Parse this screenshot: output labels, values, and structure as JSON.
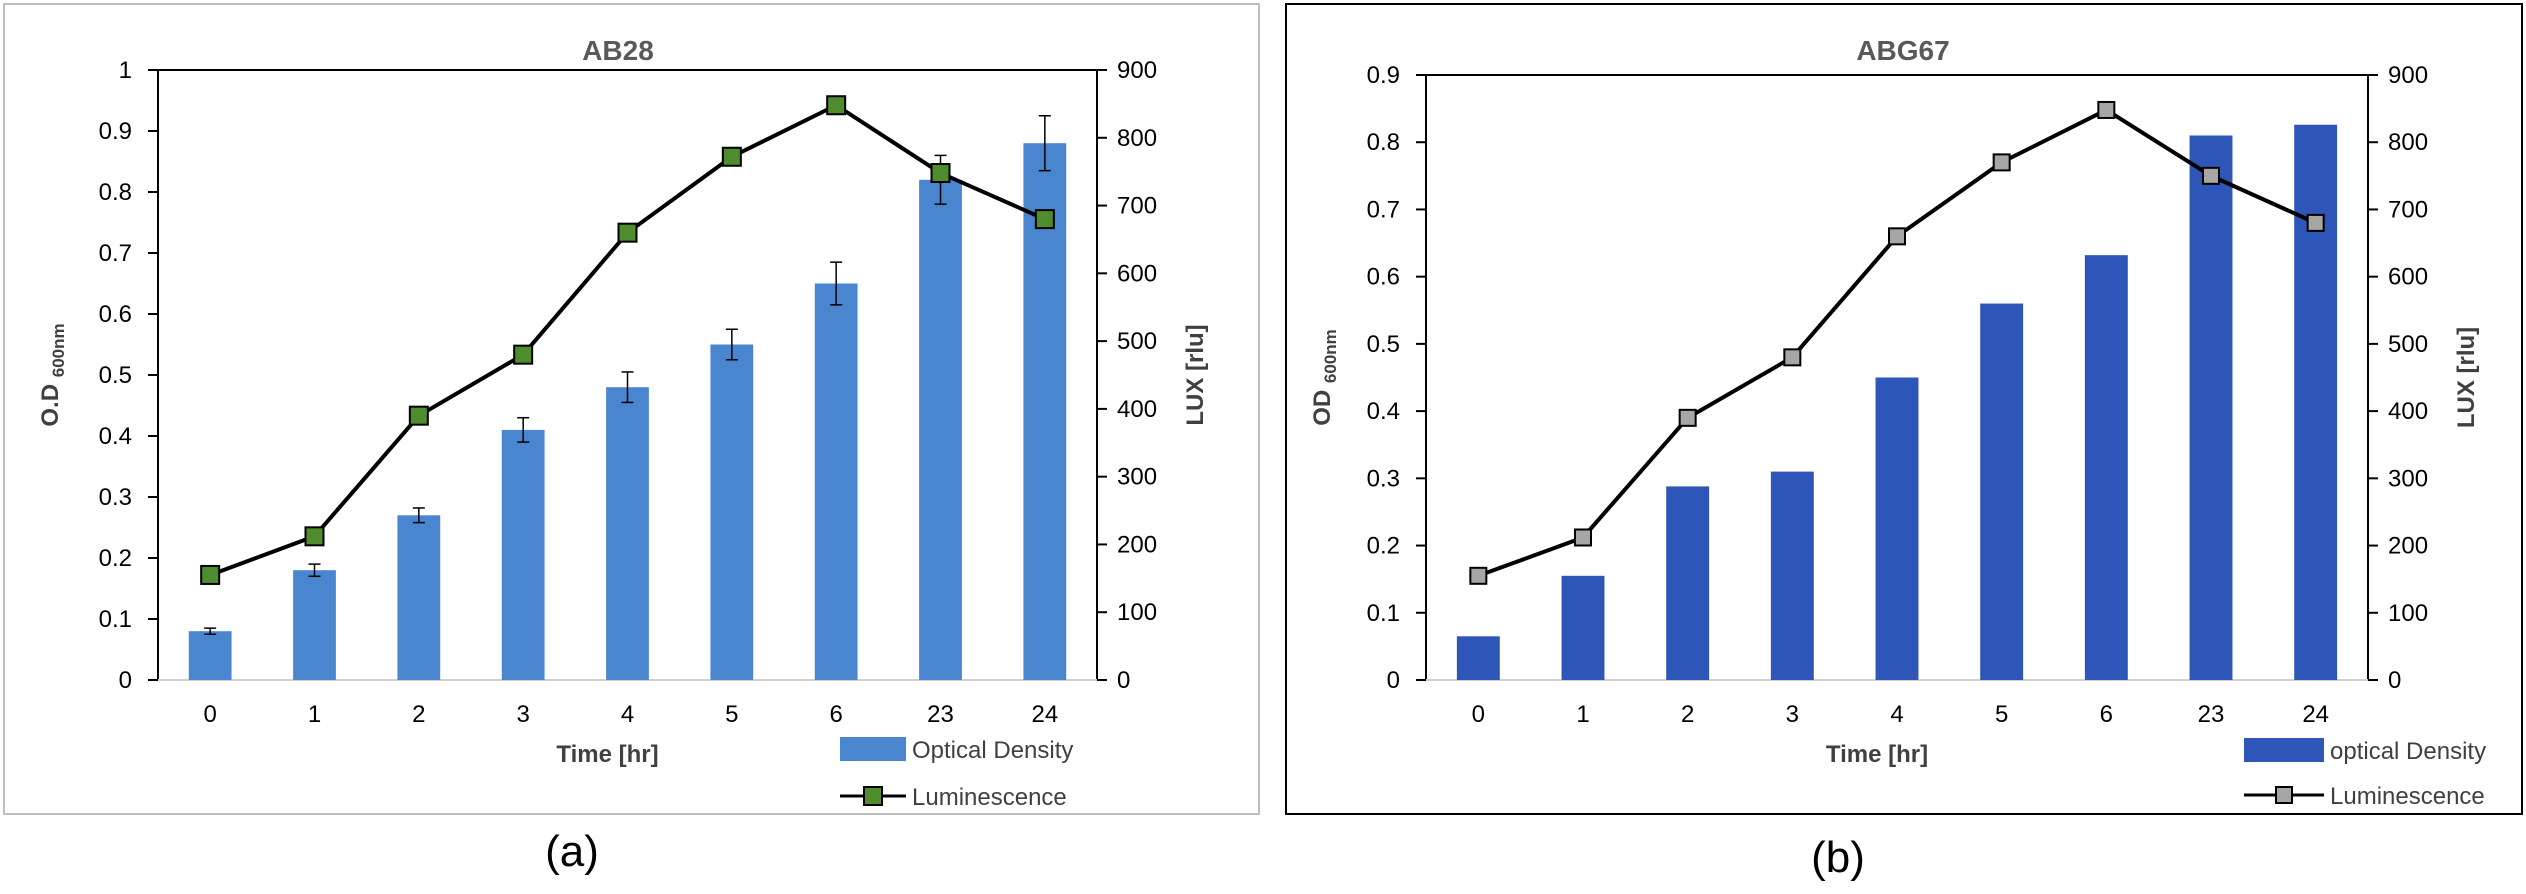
{
  "chart_data": [
    {
      "type": "bar",
      "panel_label": "(a)",
      "title": "AB28",
      "xlabel": "Time [hr]",
      "ylabel_main": "O.D",
      "ylabel_sub": "600nm",
      "y2label": "LUX [rlu]",
      "categories": [
        "0",
        "1",
        "2",
        "3",
        "4",
        "5",
        "6",
        "23",
        "24"
      ],
      "ylim": [
        0,
        1
      ],
      "yticks": [
        "0",
        "0.1",
        "0.2",
        "0.3",
        "0.4",
        "0.5",
        "0.6",
        "0.7",
        "0.8",
        "0.9",
        "1"
      ],
      "y2lim": [
        0,
        900
      ],
      "y2ticks": [
        "0",
        "100",
        "200",
        "300",
        "400",
        "500",
        "600",
        "700",
        "800",
        "900"
      ],
      "grid": false,
      "legend_position": "bottom-right",
      "series": [
        {
          "name": "Optical Density",
          "kind": "bar",
          "axis": "left",
          "color": "#4a86cf",
          "values": [
            0.08,
            0.18,
            0.27,
            0.41,
            0.48,
            0.55,
            0.65,
            0.82,
            0.88
          ],
          "errors": [
            0.005,
            0.01,
            0.012,
            0.02,
            0.025,
            0.025,
            0.035,
            0.04,
            0.045
          ]
        },
        {
          "name": "Luminescence",
          "kind": "line",
          "axis": "right",
          "color": "#000000",
          "marker_color": "#4e8c2e",
          "values": [
            155,
            212,
            390,
            480,
            660,
            772,
            848,
            748,
            680
          ]
        }
      ]
    },
    {
      "type": "bar",
      "panel_label": "(b)",
      "title": "ABG67",
      "xlabel": "Time [hr]",
      "ylabel_main": "OD",
      "ylabel_sub": "600nm",
      "y2label": "LUX [rlu]",
      "categories": [
        "0",
        "1",
        "2",
        "3",
        "4",
        "5",
        "6",
        "23",
        "24"
      ],
      "ylim": [
        0,
        0.9
      ],
      "yticks": [
        "0",
        "0.1",
        "0.2",
        "0.3",
        "0.4",
        "0.5",
        "0.6",
        "0.7",
        "0.8",
        "0.9"
      ],
      "y2lim": [
        0,
        900
      ],
      "y2ticks": [
        "0",
        "100",
        "200",
        "300",
        "400",
        "500",
        "600",
        "700",
        "800",
        "900"
      ],
      "grid": false,
      "legend_position": "bottom-right",
      "series": [
        {
          "name": "optical Density",
          "kind": "bar",
          "axis": "left",
          "color": "#2e56b8",
          "values": [
            0.065,
            0.155,
            0.288,
            0.31,
            0.45,
            0.56,
            0.632,
            0.81,
            0.826
          ]
        },
        {
          "name": "Luminescence",
          "kind": "line",
          "axis": "right",
          "color": "#000000",
          "marker_color": "#a6a6a6",
          "values": [
            155,
            212,
            390,
            480,
            660,
            770,
            848,
            750,
            680
          ]
        }
      ]
    }
  ]
}
